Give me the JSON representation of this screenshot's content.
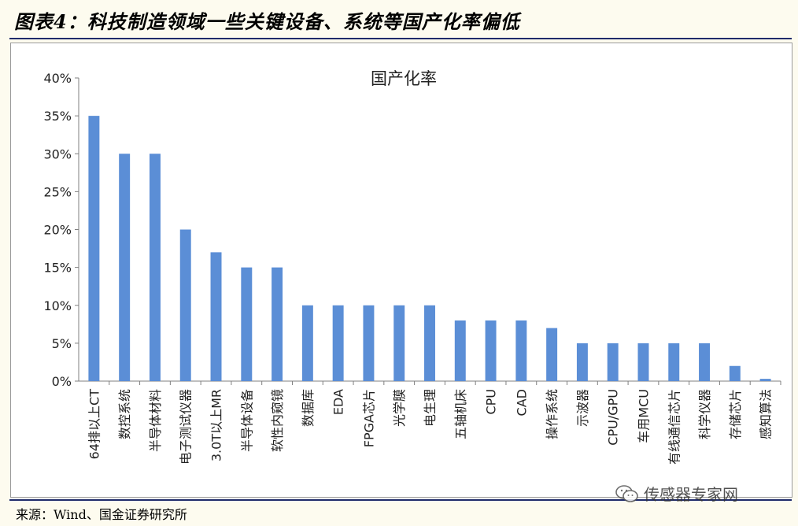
{
  "figure_title": "图表4：科技制造领域一些关键设备、系统等国产化率偏低",
  "source": "来源：Wind、国金证券研究所",
  "watermark": "传感器专家网",
  "colors": {
    "bar": "#5b8ed6",
    "axis": "#7f7f7f",
    "frame_rule": "#1f2b6b"
  },
  "chart_data": {
    "type": "bar",
    "title": "国产化率",
    "xlabel": "",
    "ylabel": "",
    "ylim": [
      0,
      40
    ],
    "yticks": [
      "0%",
      "5%",
      "10%",
      "15%",
      "20%",
      "25%",
      "30%",
      "35%",
      "40%"
    ],
    "grid": false,
    "categories": [
      "64排以上CT",
      "数控系统",
      "半导体材料",
      "电子测试仪器",
      "3.0T以上MR",
      "半导体设备",
      "软性内窥镜",
      "数据库",
      "EDA",
      "FPGA芯片",
      "光学膜",
      "电生理",
      "五轴机床",
      "CPU",
      "CAD",
      "操作系统",
      "示波器",
      "CPU/GPU",
      "车用MCU",
      "有线通信芯片",
      "科学仪器",
      "存储芯片",
      "感知算法"
    ],
    "values": [
      35,
      30,
      30,
      20,
      17,
      15,
      15,
      10,
      10,
      10,
      10,
      10,
      8,
      8,
      8,
      7,
      5,
      5,
      5,
      5,
      5,
      2,
      0.3
    ]
  }
}
